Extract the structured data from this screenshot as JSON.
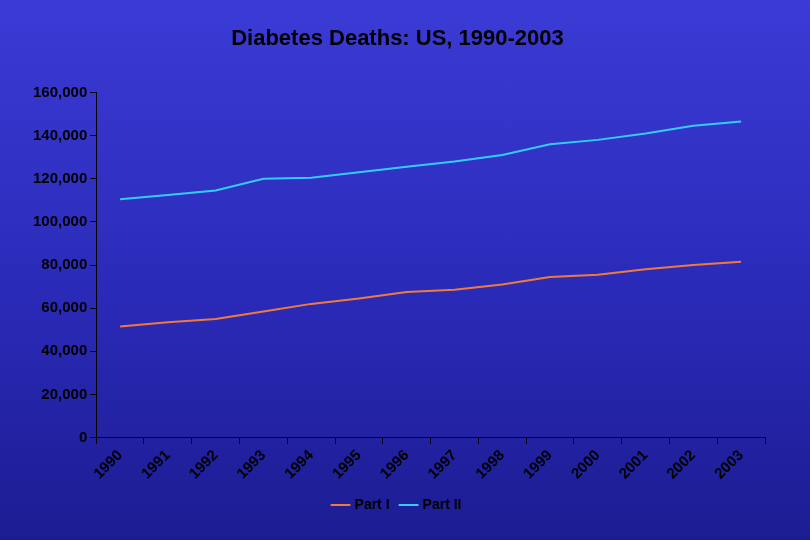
{
  "chart_data": {
    "type": "line",
    "title": "Diabetes Deaths: US, 1990-2003",
    "categories": [
      "1990",
      "1991",
      "1992",
      "1993",
      "1994",
      "1995",
      "1996",
      "1997",
      "1998",
      "1999",
      "2000",
      "2001",
      "2002",
      "2003"
    ],
    "series": [
      {
        "name": "Part I",
        "color": "#f07a3a",
        "values": [
          51500,
          53500,
          55000,
          58500,
          62000,
          64500,
          67500,
          68500,
          71000,
          74500,
          75500,
          78000,
          80000,
          81500
        ]
      },
      {
        "name": "Part II",
        "color": "#33ccff",
        "values": [
          110500,
          112500,
          114500,
          120000,
          120500,
          123000,
          125500,
          128000,
          131000,
          136000,
          138000,
          141000,
          144500,
          146500
        ]
      }
    ],
    "ylim": [
      0,
      160000
    ],
    "yticks": [
      0,
      {
        "value": 20000,
        "label": "20,000"
      },
      {
        "value": 40000,
        "label": "40,000"
      },
      {
        "value": 60000,
        "label": "60,000"
      },
      {
        "value": 80000,
        "label": "80,000"
      },
      {
        "value": 100000,
        "label": "100,000"
      },
      {
        "value": 120000,
        "label": "120,000"
      },
      {
        "value": 140000,
        "label": "140,000"
      },
      {
        "value": 160000,
        "label": "160,000"
      }
    ],
    "grid": false,
    "legend": "bottom"
  }
}
